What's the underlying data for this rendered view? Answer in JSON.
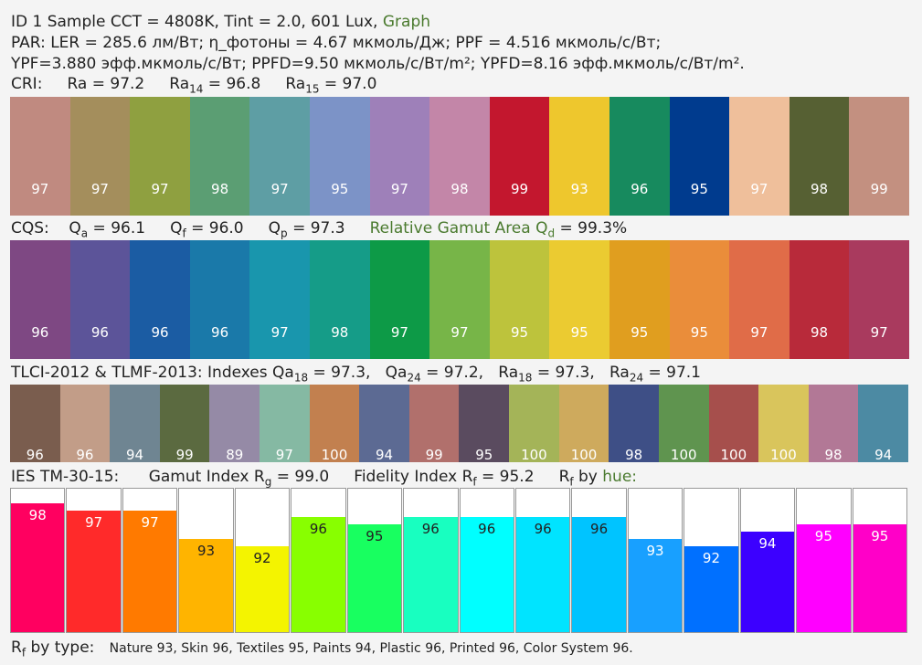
{
  "header": {
    "id_line": "ID 1 Sample  CCT = 4808K,   Tint = 2.0,  601 Lux,",
    "graph_link": "Graph",
    "par_line": "PAR:  LER = 285.6 лм/Вт; η_фотоны = 4.67 мкмоль/Дж; PPF = 4.516 мкмоль/с/Вт;",
    "ypf_line": "YPF=3.880 эфф.мкмоль/с/Вт; PPFD=9.50 мкмоль/с/Вт/m²; YPFD=8.16 эфф.мкмоль/с/Вт/m²."
  },
  "cri": {
    "label": "CRI:",
    "ra": "Ra = 97.2",
    "ra14_base": "Ra",
    "ra14_sub": "14",
    "ra14_val": " = 96.8",
    "ra15_base": "Ra",
    "ra15_sub": "15",
    "ra15_val": " = 97.0"
  },
  "cqs": {
    "label": "CQS:",
    "qa_base": "Q",
    "qa_sub": "a",
    "qa_val": " = 96.1",
    "qf_base": "Q",
    "qf_sub": "f",
    "qf_val": " = 96.0",
    "qp_base": "Q",
    "qp_sub": "p",
    "qp_val": " = 97.3",
    "gamut_label": "Relative Gamut Area Q",
    "gamut_sub": "d",
    "gamut_val": " = 99.3%"
  },
  "tlci": {
    "label": "TLCI-2012 & TLMF-2013:   Indexes ",
    "qa18_base": "Qa",
    "qa18_sub": "18",
    "qa18_val": " = 97.3,",
    "qa24_base": "Qa",
    "qa24_sub": "24",
    "qa24_val": " = 97.2,",
    "ra18_base": "Ra",
    "ra18_sub": "18",
    "ra18_val": " = 97.3,",
    "ra24_base": "Ra",
    "ra24_sub": "24",
    "ra24_val": " = 97.1"
  },
  "ies": {
    "label": "IES TM-30-15:",
    "rg_label": "Gamut Index R",
    "rg_sub": "g",
    "rg_val": " = 99.0",
    "rf_label": "Fidelity Index R",
    "rf_sub": "f",
    "rf_val": " = 95.2",
    "rfh_base": "R",
    "rfh_sub": "f",
    "rfh_mid": "  by ",
    "rfh_link": "hue:"
  },
  "bytype": {
    "base": "R",
    "sub": "f",
    "label": "  by type:",
    "values": "Nature 93,  Skin 96,  Textiles 95,  Paints 94,  Plastic 96,  Printed 96,  Color System 96."
  },
  "chart_data": [
    {
      "type": "bar",
      "name": "CRI",
      "values": [
        97,
        97,
        97,
        98,
        97,
        95,
        97,
        98,
        99,
        93,
        96,
        95,
        97,
        98,
        99
      ],
      "colors": [
        "#c08a80",
        "#a48e5c",
        "#8fa040",
        "#5b9e73",
        "#5e9ea4",
        "#7c93c7",
        "#9e80b9",
        "#c386a8",
        "#c3172e",
        "#eec72d",
        "#178a5e",
        "#003b8e",
        "#efbf9b",
        "#566033",
        "#c39080"
      ]
    },
    {
      "type": "bar",
      "name": "CQS",
      "values": [
        96,
        96,
        96,
        96,
        97,
        98,
        97,
        97,
        95,
        95,
        95,
        95,
        97,
        98,
        97
      ],
      "colors": [
        "#7e4883",
        "#5c5499",
        "#1b5ca3",
        "#1a79a9",
        "#1996ad",
        "#159c88",
        "#0d9a47",
        "#77b548",
        "#bdc33c",
        "#ebcb31",
        "#e09e1f",
        "#ea8d3a",
        "#e06c48",
        "#b82a3a",
        "#a93a5e"
      ]
    },
    {
      "type": "bar",
      "name": "TLCI",
      "values": [
        96,
        96,
        94,
        99,
        89,
        97,
        100,
        94,
        99,
        95,
        100,
        100,
        98,
        100,
        100,
        100,
        98,
        94
      ],
      "colors": [
        "#7a5d4e",
        "#c29d88",
        "#6f8592",
        "#5b6a40",
        "#958aa6",
        "#85b9a3",
        "#c2804f",
        "#5c6a93",
        "#b1706c",
        "#5a4b5f",
        "#a4b458",
        "#ceaa5d",
        "#3e4f86",
        "#5f944f",
        "#a64f4c",
        "#d9c55c",
        "#b27896",
        "#4c8aa3"
      ]
    },
    {
      "type": "bar",
      "name": "TM-30 Rf by hue",
      "values": [
        98,
        97,
        97,
        93,
        92,
        96,
        95,
        96,
        96,
        96,
        96,
        93,
        92,
        94,
        95,
        95
      ],
      "colors": [
        "#ff0060",
        "#ff2a2a",
        "#ff7a00",
        "#ffb400",
        "#f4f400",
        "#88ff00",
        "#18ff60",
        "#18ffc0",
        "#00ffff",
        "#00e4ff",
        "#00c4ff",
        "#18a0ff",
        "#0070ff",
        "#3c00ff",
        "#ff00ff",
        "#ff00c8"
      ],
      "ylim": [
        80,
        100
      ]
    }
  ]
}
